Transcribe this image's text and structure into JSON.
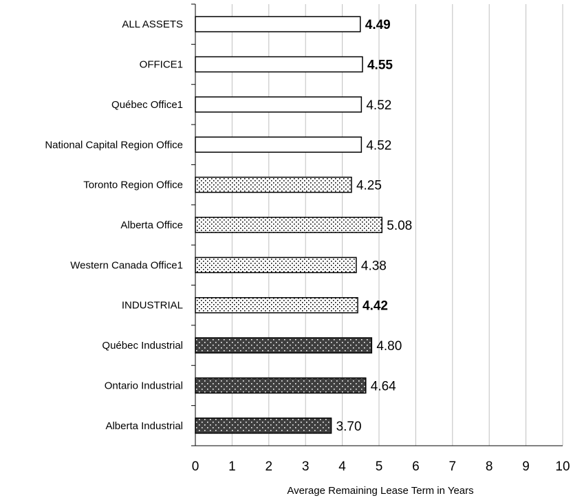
{
  "chart_data": {
    "type": "bar",
    "orientation": "horizontal",
    "categories": [
      "ALL ASSETS",
      "OFFICE1",
      "Québec Office1",
      "National Capital Region Office",
      "Toronto Region Office",
      "Alberta Office",
      "Western Canada Office1",
      "INDUSTRIAL",
      "Québec Industrial",
      "Ontario Industrial",
      "Alberta Industrial"
    ],
    "values": [
      4.49,
      4.55,
      4.52,
      4.52,
      4.25,
      5.08,
      4.38,
      4.42,
      4.8,
      4.64,
      3.7
    ],
    "value_labels": [
      "4.49",
      "4.55",
      "4.52",
      "4.52",
      "4.25",
      "5.08",
      "4.38",
      "4.42",
      "4.80",
      "4.64",
      "3.70"
    ],
    "bold_values": [
      true,
      true,
      false,
      false,
      false,
      false,
      false,
      true,
      false,
      false,
      false
    ],
    "bar_styles": [
      "white",
      "white",
      "white",
      "white",
      "light-dots",
      "light-dots",
      "light-dots",
      "light-dots",
      "dark-dots",
      "dark-dots",
      "dark-dots"
    ],
    "xlabel": "Average Remaining Lease Term in Years",
    "ylabel": "",
    "title": "",
    "xlim": [
      0,
      10
    ],
    "xticks": [
      "0",
      "1",
      "2",
      "3",
      "4",
      "5",
      "6",
      "7",
      "8",
      "9",
      "10"
    ],
    "grid": "vertical",
    "colors": {
      "grid": "#bfbfbf",
      "dark_bar": "#3f3f3f",
      "light_bar": "#ffffff",
      "outline": "#000000"
    }
  }
}
